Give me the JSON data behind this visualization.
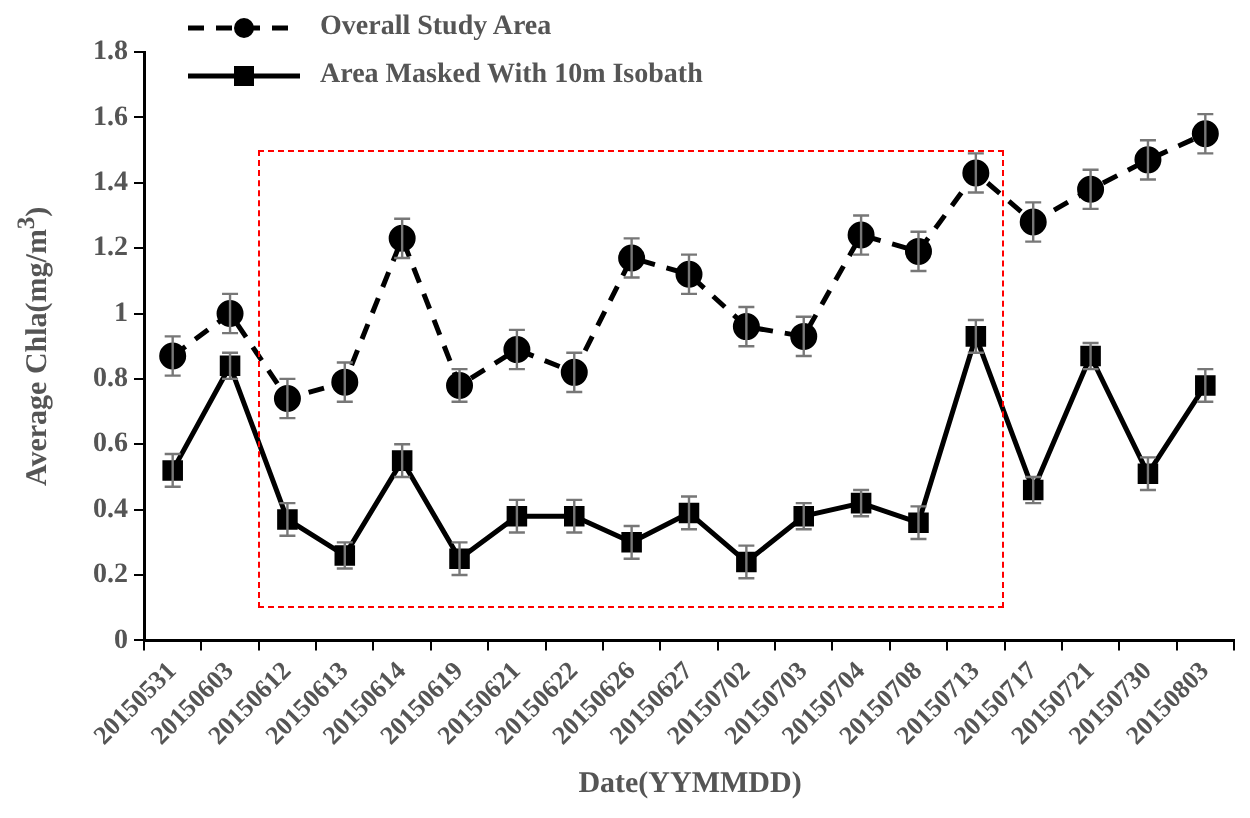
{
  "chart_data": {
    "type": "line",
    "xlabel": "Date(YYMMDD)",
    "ylabel": "Average Chla(mg/m$^{3}$)",
    "categories": [
      "20150531",
      "20150603",
      "20150612",
      "20150613",
      "20150614",
      "20150619",
      "20150621",
      "20150622",
      "20150626",
      "20150627",
      "20150702",
      "20150703",
      "20150704",
      "20150708",
      "20150713",
      "20150717",
      "20150721",
      "20150730",
      "20150803"
    ],
    "series": [
      {
        "name": "Overall Study Area",
        "color": "#000000",
        "marker": "circle",
        "line_style": "dashed",
        "values": [
          0.87,
          1.0,
          0.74,
          0.79,
          1.23,
          0.78,
          0.89,
          0.82,
          1.17,
          1.12,
          0.96,
          0.93,
          1.24,
          1.19,
          1.43,
          1.28,
          1.38,
          1.47,
          1.55
        ],
        "errors": [
          0.06,
          0.06,
          0.06,
          0.06,
          0.06,
          0.05,
          0.06,
          0.06,
          0.06,
          0.06,
          0.06,
          0.06,
          0.06,
          0.06,
          0.06,
          0.06,
          0.06,
          0.06,
          0.06
        ]
      },
      {
        "name": "Area Masked With 10m Isobath",
        "color": "#000000",
        "marker": "square",
        "line_style": "solid",
        "values": [
          0.52,
          0.84,
          0.37,
          0.26,
          0.55,
          0.25,
          0.38,
          0.38,
          0.3,
          0.39,
          0.24,
          0.38,
          0.42,
          0.36,
          0.93,
          0.46,
          0.87,
          0.51,
          0.78
        ],
        "errors": [
          0.05,
          0.04,
          0.05,
          0.04,
          0.05,
          0.05,
          0.05,
          0.05,
          0.05,
          0.05,
          0.05,
          0.04,
          0.04,
          0.05,
          0.05,
          0.04,
          0.04,
          0.05,
          0.05
        ]
      }
    ],
    "ylim": [
      0,
      1.8
    ],
    "yticks": [
      0,
      0.2,
      0.4,
      0.6,
      0.8,
      1,
      1.2,
      1.4,
      1.6,
      1.8
    ],
    "legend": "top left"
  }
}
